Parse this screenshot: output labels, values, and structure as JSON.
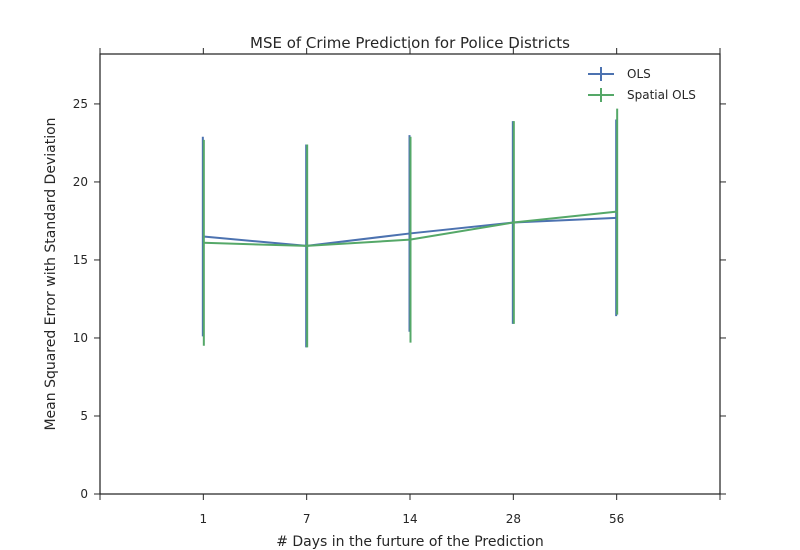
{
  "chart_data": {
    "type": "line",
    "title": "MSE of Crime Prediction for Police Districts",
    "xlabel": "# Days in the furture of the Prediction",
    "ylabel": "Mean Squared Error with Standard Deviation",
    "categories": [
      "1",
      "7",
      "14",
      "28",
      "56"
    ],
    "yticks": [
      0,
      5,
      10,
      15,
      20,
      25
    ],
    "ylim": [
      0,
      28.2
    ],
    "grid": false,
    "legend_position": "top-right",
    "error_bars": true,
    "series": [
      {
        "name": "OLS",
        "color": "#4c72b0",
        "values": [
          16.5,
          15.9,
          16.7,
          17.4,
          17.7
        ],
        "errors": [
          6.4,
          6.5,
          6.3,
          6.5,
          6.3
        ]
      },
      {
        "name": "Spatial OLS",
        "color": "#55a868",
        "values": [
          16.1,
          15.9,
          16.3,
          17.4,
          18.1
        ],
        "errors": [
          6.6,
          6.5,
          6.6,
          6.5,
          6.6
        ]
      }
    ]
  }
}
